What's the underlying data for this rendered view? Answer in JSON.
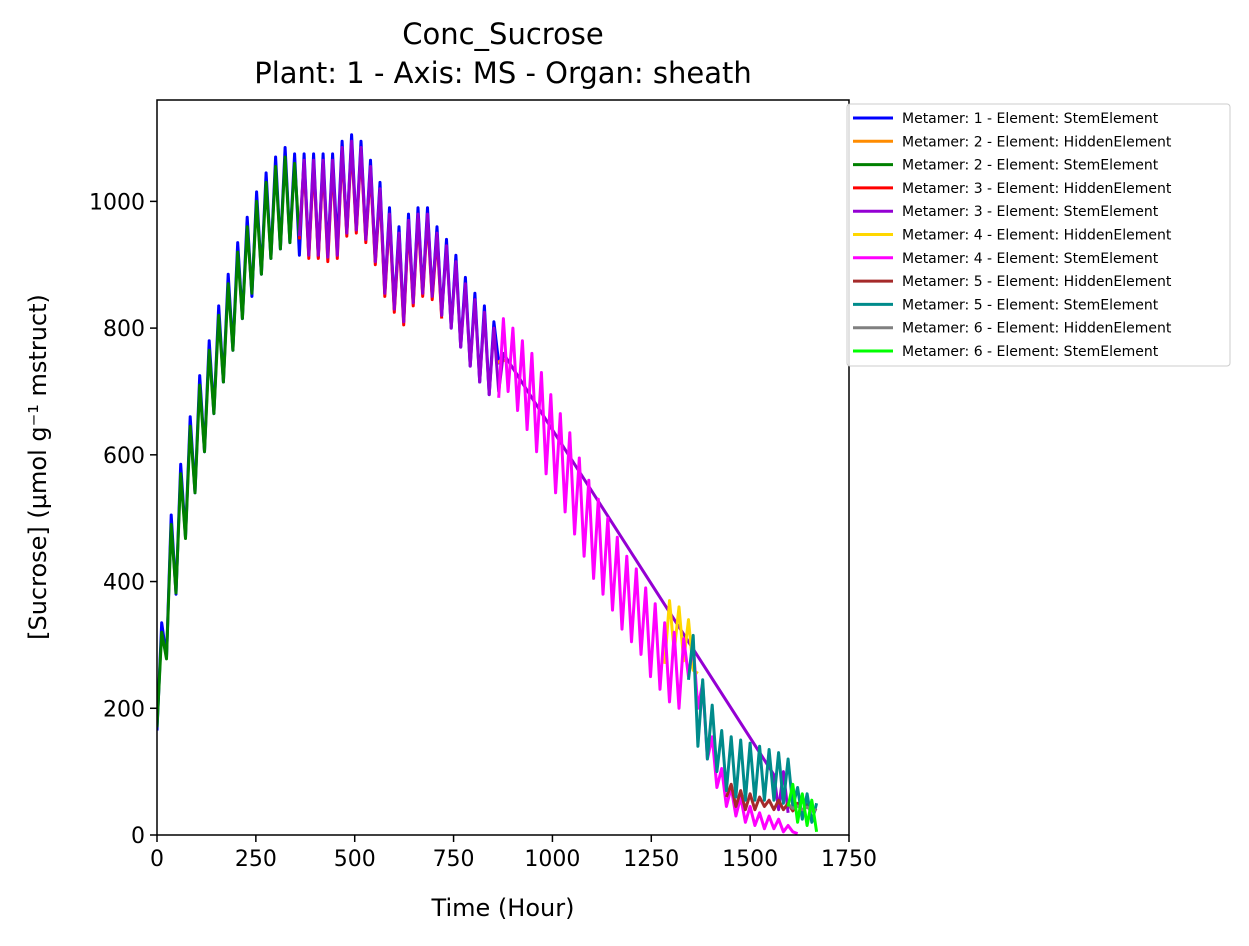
{
  "chart_data": {
    "type": "line",
    "title": "Conc_Sucrose",
    "subtitle": "Plant: 1 - Axis: MS - Organ: sheath",
    "xlabel": "Time (Hour)",
    "ylabel": "[Sucrose] (µmol g⁻¹ mstruct)",
    "xlim": [
      0,
      1750
    ],
    "ylim": [
      0,
      1160
    ],
    "xticks": [
      0,
      250,
      500,
      750,
      1000,
      1250,
      1500,
      1750
    ],
    "yticks": [
      0,
      200,
      400,
      600,
      800,
      1000
    ],
    "grid": false,
    "legend_position": "outside upper right",
    "series": [
      {
        "name": "Metamer: 1 - Element: StemElement",
        "color": "#0000ff",
        "x": [
          0,
          12,
          24,
          36,
          48,
          60,
          72,
          84,
          96,
          108,
          120,
          132,
          144,
          156,
          168,
          180,
          192,
          204,
          216,
          228,
          240,
          252,
          264,
          276,
          288,
          300,
          312,
          324,
          336,
          348,
          360,
          372,
          384,
          396,
          408,
          420,
          432,
          444,
          456,
          468,
          480,
          492,
          504,
          516,
          528,
          540,
          552,
          564,
          576,
          588,
          600,
          612,
          624,
          636,
          648,
          660,
          672,
          684,
          696,
          708,
          720,
          732,
          744,
          756,
          768,
          780,
          792,
          804,
          816,
          828,
          840,
          852,
          864,
          876
        ],
        "values": [
          165,
          335,
          280,
          505,
          380,
          585,
          470,
          660,
          540,
          725,
          605,
          780,
          665,
          835,
          715,
          885,
          765,
          935,
          815,
          975,
          850,
          1015,
          885,
          1045,
          910,
          1070,
          925,
          1085,
          935,
          1075,
          915,
          1075,
          915,
          1075,
          912,
          1075,
          915,
          1075,
          930,
          1095,
          950,
          1105,
          955,
          1095,
          940,
          1065,
          905,
          1030,
          855,
          990,
          830,
          960,
          810,
          980,
          840,
          990,
          855,
          990,
          850,
          960,
          820,
          940,
          800,
          915,
          770,
          880,
          740,
          855,
          715,
          835,
          695,
          810,
          745,
          760
        ]
      },
      {
        "name": "Metamer: 2 - Element: HiddenElement",
        "color": "#ff8c00",
        "x": [
          860,
          872,
          884
        ],
        "values": [
          745,
          750,
          748
        ]
      },
      {
        "name": "Metamer: 2 - Element: StemElement",
        "color": "#008000",
        "x": [
          0,
          12,
          24,
          36,
          48,
          60,
          72,
          84,
          96,
          108,
          120,
          132,
          144,
          156,
          168,
          180,
          192,
          204,
          216,
          228,
          240,
          252,
          264,
          276,
          288,
          300,
          312,
          324,
          336,
          348,
          360
        ],
        "values": [
          170,
          320,
          278,
          490,
          382,
          570,
          468,
          645,
          540,
          710,
          605,
          765,
          665,
          820,
          715,
          870,
          765,
          920,
          815,
          960,
          855,
          1000,
          885,
          1030,
          910,
          1055,
          925,
          1070,
          935,
          1060,
          940
        ]
      },
      {
        "name": "Metamer: 3 - Element: HiddenElement",
        "color": "#ff0000",
        "x": [
          360,
          372,
          384,
          396,
          408,
          420,
          432,
          444,
          456,
          468,
          480,
          492,
          504,
          516,
          528,
          540,
          552,
          564,
          576,
          588,
          600,
          612,
          624,
          636,
          648,
          660,
          672,
          684,
          696,
          708,
          720
        ],
        "values": [
          940,
          1060,
          910,
          1060,
          910,
          1060,
          905,
          1060,
          910,
          1080,
          945,
          1090,
          950,
          1080,
          935,
          1050,
          900,
          1015,
          850,
          975,
          825,
          945,
          805,
          965,
          835,
          975,
          850,
          975,
          845,
          945,
          815
        ]
      },
      {
        "name": "Metamer: 3 - Element: StemElement",
        "color": "#9400d3",
        "x": [
          360,
          372,
          384,
          396,
          408,
          420,
          432,
          444,
          456,
          468,
          480,
          492,
          504,
          516,
          528,
          540,
          552,
          564,
          576,
          588,
          600,
          612,
          624,
          636,
          648,
          660,
          672,
          684,
          696,
          708,
          720,
          732,
          744,
          756,
          768,
          780,
          792,
          804,
          816,
          828,
          840,
          852,
          864,
          876,
          1560,
          1572,
          1584,
          1596
        ],
        "values": [
          945,
          1065,
          915,
          1065,
          915,
          1065,
          912,
          1065,
          915,
          1085,
          950,
          1095,
          955,
          1085,
          940,
          1055,
          905,
          1020,
          855,
          980,
          830,
          950,
          810,
          970,
          840,
          980,
          855,
          980,
          850,
          950,
          820,
          930,
          800,
          905,
          770,
          870,
          740,
          845,
          715,
          825,
          695,
          800,
          700,
          760,
          95,
          40,
          100,
          35
        ]
      },
      {
        "name": "Metamer: 4 - Element: HiddenElement",
        "color": "#ffd700",
        "x": [
          1284,
          1296,
          1308,
          1320,
          1332,
          1344,
          1356,
          1368
        ],
        "values": [
          270,
          370,
          290,
          360,
          275,
          340,
          260,
          255
        ]
      },
      {
        "name": "Metamer: 4 - Element: StemElement",
        "color": "#ff00ff",
        "x": [
          864,
          876,
          888,
          900,
          912,
          924,
          936,
          948,
          960,
          972,
          984,
          996,
          1008,
          1020,
          1032,
          1044,
          1056,
          1068,
          1080,
          1092,
          1104,
          1116,
          1128,
          1140,
          1152,
          1164,
          1176,
          1188,
          1200,
          1212,
          1224,
          1236,
          1248,
          1260,
          1272,
          1284,
          1296,
          1308,
          1320,
          1332,
          1344,
          1356,
          1368,
          1380,
          1392,
          1404,
          1416,
          1428,
          1440,
          1452,
          1464,
          1476,
          1488,
          1500,
          1512,
          1524,
          1536,
          1548,
          1560,
          1572,
          1584,
          1596,
          1608,
          1620
        ],
        "values": [
          690,
          815,
          700,
          800,
          670,
          780,
          640,
          760,
          605,
          730,
          570,
          695,
          540,
          665,
          510,
          635,
          475,
          595,
          440,
          560,
          405,
          530,
          380,
          500,
          355,
          470,
          325,
          440,
          305,
          420,
          285,
          390,
          250,
          365,
          230,
          335,
          210,
          320,
          200,
          310,
          250,
          300,
          200,
          240,
          120,
          155,
          75,
          105,
          45,
          75,
          30,
          60,
          20,
          45,
          15,
          35,
          10,
          30,
          10,
          25,
          5,
          15,
          5,
          2
        ]
      },
      {
        "name": "Metamer: 5 - Element: HiddenElement",
        "color": "#a52a2a",
        "x": [
          1440,
          1452,
          1464,
          1476,
          1488,
          1500,
          1512,
          1524,
          1536,
          1548,
          1560,
          1572,
          1584,
          1596,
          1608,
          1620,
          1632,
          1644,
          1656,
          1668
        ],
        "values": [
          60,
          80,
          45,
          70,
          40,
          65,
          40,
          60,
          45,
          55,
          40,
          55,
          40,
          50,
          38,
          50,
          35,
          48,
          38,
          42
        ]
      },
      {
        "name": "Metamer: 5 - Element: StemElement",
        "color": "#008b8b",
        "x": [
          1344,
          1356,
          1368,
          1380,
          1392,
          1404,
          1416,
          1428,
          1440,
          1452,
          1464,
          1476,
          1488,
          1500,
          1512,
          1524,
          1536,
          1548,
          1560,
          1572,
          1584,
          1596,
          1608,
          1620,
          1632,
          1644,
          1656,
          1668
        ],
        "values": [
          245,
          315,
          140,
          245,
          120,
          205,
          100,
          165,
          70,
          155,
          60,
          150,
          55,
          145,
          55,
          140,
          55,
          135,
          55,
          130,
          50,
          120,
          45,
          75,
          25,
          65,
          20,
          50
        ]
      },
      {
        "name": "Metamer: 6 - Element: HiddenElement",
        "color": "#808080",
        "x": [
          1596,
          1608,
          1620,
          1632,
          1644,
          1656,
          1668
        ],
        "values": [
          48,
          42,
          46,
          40,
          44,
          38,
          40
        ]
      },
      {
        "name": "Metamer: 6 - Element: StemElement",
        "color": "#00ff00",
        "x": [
          1596,
          1608,
          1620,
          1632,
          1644,
          1656,
          1668
        ],
        "values": [
          45,
          80,
          20,
          65,
          15,
          55,
          5
        ]
      }
    ]
  }
}
